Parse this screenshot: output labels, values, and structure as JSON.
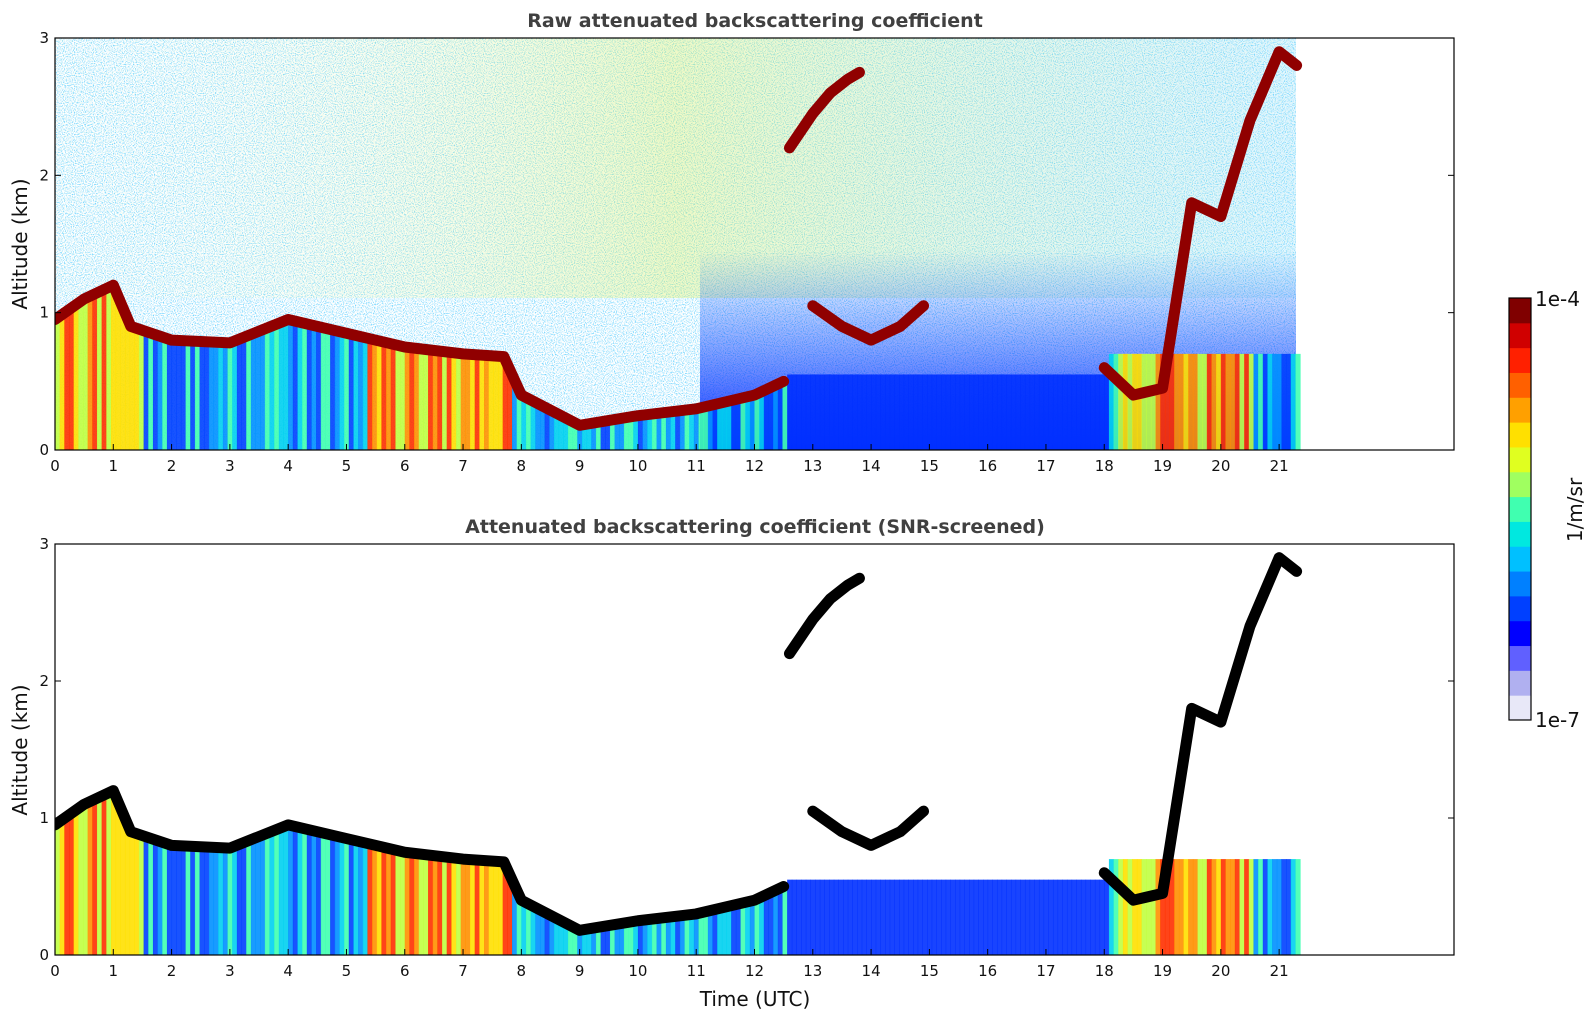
{
  "chart_data": [
    {
      "type": "heatmap",
      "title": "Raw attenuated backscattering coefficient",
      "ylabel": "Altitude (km)",
      "xlabel": "",
      "xlim": [
        0,
        24
      ],
      "ylim": [
        0,
        3
      ],
      "xticks": [
        0,
        1,
        2,
        3,
        4,
        5,
        6,
        7,
        8,
        9,
        10,
        11,
        12,
        13,
        14,
        15,
        16,
        17,
        18,
        19,
        20,
        21
      ],
      "yticks": [
        0,
        1,
        2,
        3
      ],
      "data_end_time": 21.3,
      "grid": false,
      "layers": [
        {
          "feature": "boundary-layer-top",
          "time": [
            0,
            0.5,
            1,
            1.3,
            2,
            3,
            4,
            5,
            6,
            7,
            7.7,
            8,
            9,
            10,
            11,
            12,
            12.5
          ],
          "altitude": [
            0.95,
            1.1,
            1.2,
            0.9,
            0.8,
            0.78,
            0.95,
            0.85,
            0.75,
            0.7,
            0.68,
            0.4,
            0.18,
            0.25,
            0.3,
            0.4,
            0.5
          ]
        },
        {
          "feature": "elevated-cloud",
          "time": [
            12.6,
            13,
            13.3,
            13.6,
            13.8
          ],
          "altitude": [
            2.2,
            2.45,
            2.6,
            2.7,
            2.75
          ]
        },
        {
          "feature": "mid-cloud",
          "time": [
            13,
            13.5,
            14,
            14.5,
            14.9
          ],
          "altitude": [
            1.05,
            0.9,
            0.8,
            0.9,
            1.05
          ]
        },
        {
          "feature": "evening-cloud",
          "time": [
            18,
            18.5,
            19,
            19.5,
            20,
            20.5,
            21,
            21.3
          ],
          "altitude": [
            0.6,
            0.4,
            0.45,
            1.8,
            1.7,
            2.4,
            2.9,
            2.8
          ]
        }
      ]
    },
    {
      "type": "heatmap",
      "title": "Attenuated backscattering coefficient (SNR-screened)",
      "ylabel": "Altitude (km)",
      "xlabel": "Time (UTC)",
      "xlim": [
        0,
        24
      ],
      "ylim": [
        0,
        3
      ],
      "xticks": [
        0,
        1,
        2,
        3,
        4,
        5,
        6,
        7,
        8,
        9,
        10,
        11,
        12,
        13,
        14,
        15,
        16,
        17,
        18,
        19,
        20,
        21
      ],
      "yticks": [
        0,
        1,
        2,
        3
      ],
      "data_end_time": 21.3,
      "grid": false
    }
  ],
  "colorbar": {
    "label": "1/m/sr",
    "max_label": "1e-4",
    "min_label": "1e-7",
    "colors": [
      "#e8e8f8",
      "#b0b0f0",
      "#6060ff",
      "#0000ff",
      "#0040ff",
      "#0080ff",
      "#00c0ff",
      "#00e8e0",
      "#40ffb0",
      "#a0ff60",
      "#e0ff20",
      "#ffe000",
      "#ffa000",
      "#ff6000",
      "#ff2000",
      "#d00000",
      "#800000"
    ]
  }
}
